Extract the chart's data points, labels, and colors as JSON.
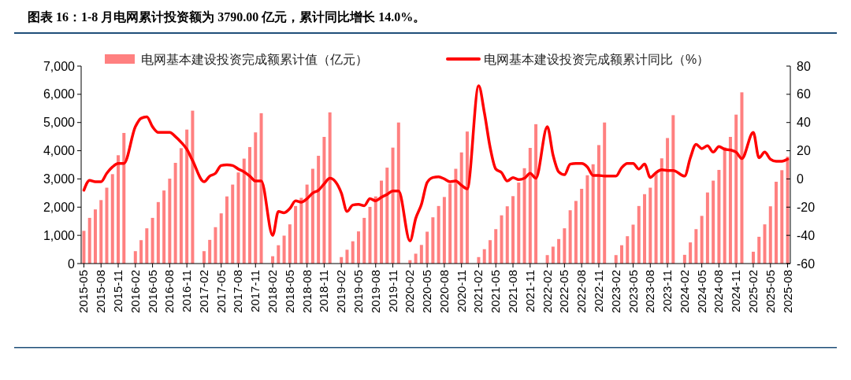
{
  "chart_data": {
    "type": "bar",
    "title": "图表 16：1-8 月电网累计投资额为 3790.00 亿元，累计同比增长 14.0%。",
    "categories": [
      "2015-05",
      null,
      null,
      "2015-08",
      null,
      null,
      "2015-11",
      null,
      null,
      "2016-02",
      null,
      null,
      "2016-05",
      null,
      null,
      "2016-08",
      null,
      null,
      "2016-11",
      null,
      null,
      "2017-02",
      null,
      null,
      "2017-05",
      null,
      null,
      "2017-08",
      null,
      null,
      "2017-11",
      null,
      null,
      "2018-02",
      null,
      null,
      "2018-05",
      null,
      null,
      "2018-08",
      null,
      null,
      "2018-11",
      null,
      null,
      "2019-02",
      null,
      null,
      "2019-05",
      null,
      null,
      "2019-08",
      null,
      null,
      "2019-11",
      null,
      null,
      "2020-02",
      null,
      null,
      "2020-05",
      null,
      null,
      "2020-08",
      null,
      null,
      "2020-11",
      null,
      null,
      "2021-02",
      null,
      null,
      "2021-05",
      null,
      null,
      "2021-08",
      null,
      null,
      "2021-11",
      null,
      null,
      "2022-02",
      null,
      null,
      "2022-05",
      null,
      null,
      "2022-08",
      null,
      null,
      "2022-11",
      null,
      null,
      "2023-02",
      null,
      null,
      "2023-05",
      null,
      null,
      "2023-08",
      null,
      null,
      "2023-11",
      null,
      null,
      "2024-02",
      null,
      null,
      "2024-05",
      null,
      null,
      "2024-08",
      null,
      null,
      "2024-11",
      null,
      null,
      "2025-02",
      null,
      null,
      "2025-05",
      null,
      null,
      "2025-08"
    ],
    "series": [
      {
        "name": "电网基本建设投资完成额累计值（亿元）",
        "color": "#ff8080",
        "values": [
          1160,
          1620,
          1920,
          2250,
          2690,
          3170,
          3840,
          4630,
          null,
          440,
          830,
          1250,
          1620,
          2180,
          2590,
          3010,
          3570,
          4090,
          4750,
          5420,
          null,
          440,
          840,
          1290,
          1780,
          2380,
          2800,
          3230,
          3720,
          4130,
          4650,
          5330,
          null,
          260,
          650,
          990,
          1390,
          2040,
          2330,
          2800,
          3360,
          3820,
          4490,
          5360,
          null,
          230,
          490,
          790,
          1140,
          1620,
          2010,
          2380,
          2940,
          3400,
          4110,
          5000,
          null,
          120,
          350,
          660,
          1130,
          1640,
          2040,
          2360,
          2830,
          3360,
          3940,
          4680,
          null,
          230,
          510,
          830,
          1220,
          1710,
          2030,
          2390,
          2870,
          3380,
          4100,
          4940,
          null,
          300,
          600,
          870,
          1250,
          1890,
          2220,
          2650,
          3130,
          3520,
          4200,
          5000,
          null,
          300,
          650,
          970,
          1380,
          2040,
          2460,
          2690,
          3200,
          3730,
          4450,
          5260,
          null,
          310,
          750,
          1220,
          1690,
          2520,
          2940,
          3320,
          4120,
          4490,
          5280,
          6070,
          null,
          420,
          950,
          1390,
          2030,
          2900,
          3310,
          3790
        ]
      },
      {
        "name": "电网基本建设投资完成额累计同比（%）",
        "type": "line",
        "axis": "y2",
        "color": "#ff0000",
        "values": [
          -8,
          -1,
          -2,
          -2,
          4,
          8.5,
          11,
          11,
          null,
          37,
          43,
          44,
          37,
          33,
          33,
          33,
          30,
          26,
          21,
          13,
          null,
          -2,
          2,
          4,
          9.5,
          10,
          9.5,
          7,
          5,
          2,
          -1.5,
          -1.5,
          null,
          -40,
          -23,
          -24,
          -21,
          -15.5,
          -16.5,
          -14,
          -10,
          -8,
          -3.5,
          0.5,
          null,
          -10,
          -23,
          -18.5,
          -18,
          -19,
          -14,
          -15.5,
          -13,
          -11,
          -8.5,
          -8.5,
          null,
          -44,
          -28,
          -18,
          -2.5,
          1,
          1.5,
          0,
          -2,
          -1.5,
          -4.5,
          -7,
          null,
          66,
          47,
          22.5,
          7,
          4.5,
          -1.5,
          1,
          -0.5,
          0.5,
          4,
          0.5,
          null,
          37,
          17,
          5,
          3,
          10.5,
          11,
          11,
          8.5,
          2.5,
          2.5,
          2,
          null,
          2,
          8,
          11,
          11,
          7,
          10.5,
          1,
          4.5,
          6.5,
          6,
          6,
          null,
          2,
          15,
          24.5,
          21.5,
          23.5,
          19,
          23,
          21,
          20.5,
          19,
          14.5,
          null,
          33,
          15,
          19,
          14,
          12.5,
          12.5,
          14
        ]
      }
    ],
    "ylim": [
      0,
      7000
    ],
    "yticks": [
      0,
      {
        "value": 1000,
        "label": "1,000"
      },
      {
        "value": 2000,
        "label": "2,000"
      },
      {
        "value": 3000,
        "label": "3,000"
      },
      {
        "value": 4000,
        "label": "4,000"
      },
      {
        "value": 5000,
        "label": "5,000"
      },
      {
        "value": 6000,
        "label": "6,000"
      },
      {
        "value": 7000,
        "label": "7,000"
      }
    ],
    "y2lim": [
      -60,
      80
    ],
    "y2ticks": [
      -60,
      -40,
      -20,
      0,
      20,
      40,
      60,
      80
    ],
    "legend": "top",
    "grid": false,
    "marker": "none",
    "line_style": "solid"
  }
}
